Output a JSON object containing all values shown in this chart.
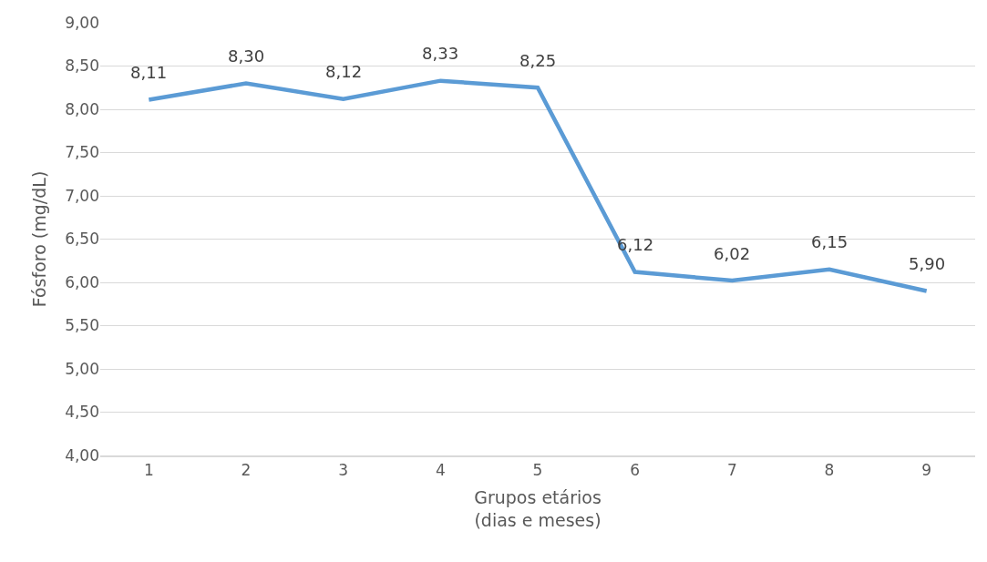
{
  "chart_data": {
    "type": "line",
    "xlabel": "Grupos etários\n(dias e meses)",
    "ylabel": "Fósforo (mg/dL)",
    "categories": [
      "1",
      "2",
      "3",
      "4",
      "5",
      "6",
      "7",
      "8",
      "9"
    ],
    "series": [
      {
        "color": "#5b9bd5",
        "values": [
          8.11,
          8.3,
          8.12,
          8.33,
          8.25,
          6.12,
          6.02,
          6.15,
          5.9
        ],
        "value_labels": [
          "8,11",
          "8,30",
          "8,12",
          "8,33",
          "8,25",
          "6,12",
          "6,02",
          "6,15",
          "5,90"
        ]
      }
    ],
    "ylim": [
      4,
      9
    ],
    "yticks": [
      {
        "value": 4,
        "label": "4,00"
      },
      {
        "value": 4.5,
        "label": "4,50"
      },
      {
        "value": 5,
        "label": "5,00"
      },
      {
        "value": 5.5,
        "label": "5,50"
      },
      {
        "value": 6,
        "label": "6,00"
      },
      {
        "value": 6.5,
        "label": "6,50"
      },
      {
        "value": 7,
        "label": "7,00"
      },
      {
        "value": 7.5,
        "label": "7,50"
      },
      {
        "value": 8,
        "label": "8,00"
      },
      {
        "value": 8.5,
        "label": "8,50"
      },
      {
        "value": 9,
        "label": "9,00"
      }
    ],
    "grid": "y",
    "marker": "none",
    "line_style": "solid"
  }
}
